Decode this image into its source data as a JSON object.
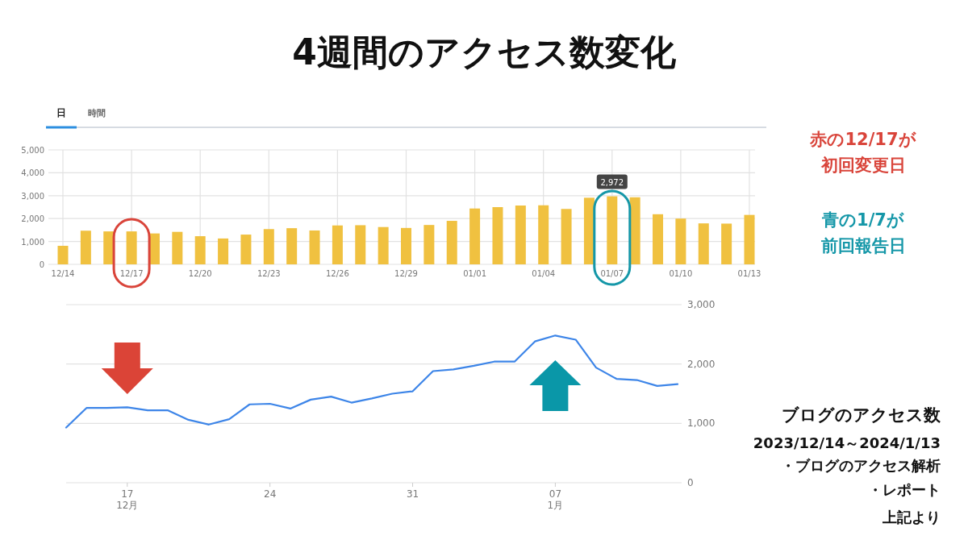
{
  "chart_data": [
    {
      "type": "bar",
      "title": "4週間のアクセス数変化",
      "categories": [
        "12/14",
        null,
        null,
        "12/17",
        null,
        null,
        "12/20",
        null,
        null,
        "12/23",
        null,
        null,
        "12/26",
        null,
        null,
        "12/29",
        null,
        null,
        "01/01",
        null,
        null,
        "01/04",
        null,
        null,
        "01/07",
        null,
        null,
        "01/10",
        null,
        null,
        "01/13"
      ],
      "series": [
        {
          "color": "#f0c140",
          "values": [
            810,
            1470,
            1440,
            1440,
            1350,
            1420,
            1230,
            1130,
            1300,
            1540,
            1580,
            1480,
            1700,
            1710,
            1630,
            1590,
            1720,
            1900,
            2440,
            2500,
            2570,
            2580,
            2420,
            2910,
            2972,
            2930,
            2190,
            2000,
            1790,
            1780,
            2160
          ]
        }
      ],
      "value_labels": [
        null,
        null,
        null,
        null,
        null,
        null,
        null,
        null,
        null,
        null,
        null,
        null,
        null,
        null,
        null,
        null,
        null,
        null,
        null,
        null,
        null,
        null,
        null,
        null,
        "2,972",
        null,
        null,
        null,
        null,
        null,
        null
      ],
      "ylim": [
        0,
        5000
      ],
      "yticks": [
        0,
        {
          "value": 1000,
          "label": "1,000"
        },
        {
          "value": 2000,
          "label": "2,000"
        },
        {
          "value": 3000,
          "label": "3,000"
        },
        {
          "value": 4000,
          "label": "4,000"
        },
        {
          "value": 5000,
          "label": "5,000"
        }
      ],
      "grid": true,
      "annotations": [
        "日",
        "時間",
        "赤の12/17が",
        "初回変更日",
        "青の1/7が",
        "前回報告日"
      ]
    },
    {
      "type": "line",
      "categories": [
        null,
        null,
        null,
        "17",
        null,
        null,
        null,
        null,
        null,
        null,
        "24",
        null,
        null,
        null,
        null,
        null,
        null,
        "31",
        null,
        null,
        null,
        null,
        null,
        null,
        "07",
        null,
        null,
        null,
        null,
        null,
        null
      ],
      "series": [
        {
          "color": "#3d85e8",
          "values": [
            930,
            1260,
            1260,
            1270,
            1220,
            1220,
            1060,
            980,
            1070,
            1320,
            1330,
            1250,
            1400,
            1450,
            1350,
            1420,
            1500,
            1540,
            1880,
            1910,
            1970,
            2040,
            2040,
            2380,
            2480,
            2410,
            1940,
            1750,
            1730,
            1630,
            1660
          ]
        }
      ],
      "ylim": [
        0,
        3000
      ],
      "yticks": [
        0,
        {
          "value": 1000,
          "label": "1,000"
        },
        {
          "value": 2000,
          "label": "2,000"
        },
        {
          "value": 3000,
          "label": "3,000"
        }
      ],
      "grid": "y",
      "annotations": [
        "12月",
        "1月",
        "ブログのアクセス数",
        "2023/12/14～2024/1/13",
        "・ブログのアクセス解析",
        "・レポート",
        "上記より"
      ]
    }
  ]
}
